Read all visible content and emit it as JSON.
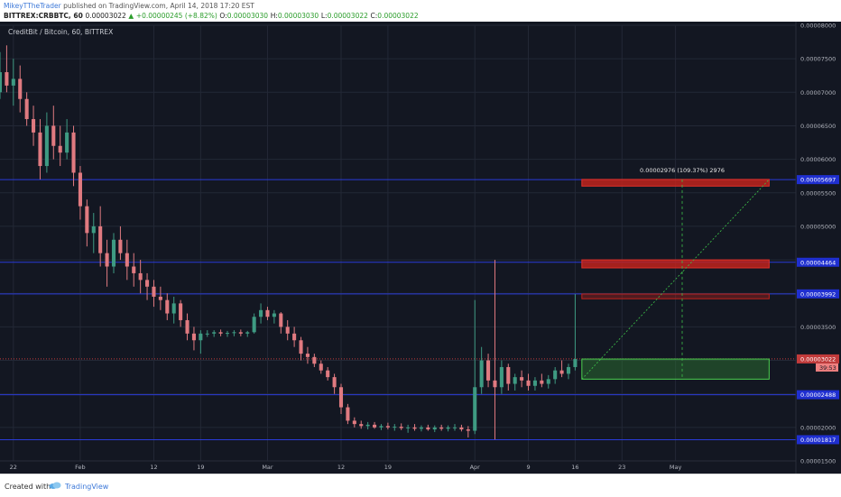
{
  "header": {
    "author": "MikeyTTheTrader",
    "published": "published on TradingView.com, April 14, 2018 17:20 EST",
    "symbol": "BITTREX:CRBBTC, 60",
    "last": "0.00003022",
    "change": "+0.00000245 (+8.82%)",
    "ohlc": {
      "o_label": "O:",
      "o": "0.00003030",
      "h_label": "H:",
      "h": "0.00003030",
      "l_label": "L:",
      "l": "0.00003022",
      "c_label": "C:",
      "c": "0.00003022"
    }
  },
  "chart_title": "CreditBit / Bitcoin, 60, BITTREX",
  "footer": {
    "created_with": "Created with",
    "brand": "TradingView"
  },
  "colors": {
    "background": "#131722",
    "grid": "#232836",
    "up": "#3e9a82",
    "down": "#e07a80",
    "level_line": "#2a3bd8",
    "current_line": "#c23b3b",
    "target_zone": "#c0231c",
    "entry_zone": "#2e7d32",
    "projection": "#3ec44a"
  },
  "chart_data": {
    "type": "candlestick",
    "title": "CreditBit / Bitcoin, 60, BITTREX",
    "y_axis": {
      "ticks": [
        "0.00008000",
        "0.00007500",
        "0.00007000",
        "0.00006500",
        "0.00006000",
        "0.00005500",
        "0.00005000",
        "0.00004500",
        "0.00004000",
        "0.00003500",
        "0.00003000",
        "0.00002500",
        "0.00002000",
        "0.00001500"
      ],
      "range": [
        1.5e-05,
        8e-05
      ]
    },
    "x_axis": {
      "ticks": [
        {
          "label": "22",
          "day": -10
        },
        {
          "label": "Feb",
          "day": 0
        },
        {
          "label": "12",
          "day": 11
        },
        {
          "label": "19",
          "day": 18
        },
        {
          "label": "Mar",
          "day": 28
        },
        {
          "label": "12",
          "day": 39
        },
        {
          "label": "19",
          "day": 46
        },
        {
          "label": "Apr",
          "day": 59
        },
        {
          "label": "9",
          "day": 67
        },
        {
          "label": "16",
          "day": 74
        },
        {
          "label": "23",
          "day": 81
        },
        {
          "label": "May",
          "day": 89
        }
      ],
      "range": [
        -12,
        107
      ]
    },
    "horizontal_levels": [
      {
        "price": 5.697e-05,
        "label": "0.00005697",
        "role": "level"
      },
      {
        "price": 4.464e-05,
        "label": "0.00004464",
        "role": "level"
      },
      {
        "price": 3.992e-05,
        "label": "0.00003992",
        "role": "level"
      },
      {
        "price": 3.022e-05,
        "label": "0.00003022",
        "role": "current"
      },
      {
        "price": 2.488e-05,
        "label": "0.00002488",
        "role": "level"
      },
      {
        "price": 1.817e-05,
        "label": "0.00001817",
        "role": "level"
      }
    ],
    "countdown": "39:53",
    "zones": [
      {
        "name": "target-zone-1",
        "day_start": 75,
        "day_end": 103,
        "price_low": 5.6e-05,
        "price_high": 5.7e-05,
        "kind": "target"
      },
      {
        "name": "target-zone-2",
        "day_start": 75,
        "day_end": 103,
        "price_low": 4.38e-05,
        "price_high": 4.5e-05,
        "kind": "target"
      },
      {
        "name": "target-zone-3",
        "day_start": 75,
        "day_end": 103,
        "price_low": 3.92e-05,
        "price_high": 3.99e-05,
        "kind": "target-faint"
      },
      {
        "name": "entry-zone",
        "day_start": 75,
        "day_end": 103,
        "price_low": 2.72e-05,
        "price_high": 3.02e-05,
        "kind": "entry"
      }
    ],
    "projection": {
      "from": {
        "day": 75,
        "price": 2.72e-05
      },
      "to": {
        "day": 103,
        "price": 5.7e-05
      },
      "vertical_day": 90,
      "label": "0.00002976 (109.37%) 2976"
    },
    "series": [
      {
        "name": "CRBBTC",
        "points": [
          {
            "day": -12,
            "o": 7.0,
            "h": 7.6,
            "l": 6.9,
            "c": 7.3
          },
          {
            "day": -11,
            "o": 7.3,
            "h": 7.7,
            "l": 7.0,
            "c": 7.1
          },
          {
            "day": -10,
            "o": 7.1,
            "h": 7.5,
            "l": 6.8,
            "c": 7.2
          },
          {
            "day": -9,
            "o": 7.2,
            "h": 7.4,
            "l": 6.7,
            "c": 6.9
          },
          {
            "day": -8,
            "o": 6.9,
            "h": 7.0,
            "l": 6.5,
            "c": 6.6
          },
          {
            "day": -7,
            "o": 6.6,
            "h": 6.8,
            "l": 6.2,
            "c": 6.4
          },
          {
            "day": -6,
            "o": 6.4,
            "h": 6.6,
            "l": 5.7,
            "c": 5.9
          },
          {
            "day": -5,
            "o": 5.9,
            "h": 6.7,
            "l": 5.8,
            "c": 6.5
          },
          {
            "day": -4,
            "o": 6.5,
            "h": 6.8,
            "l": 6.0,
            "c": 6.2
          },
          {
            "day": -3,
            "o": 6.2,
            "h": 6.5,
            "l": 5.9,
            "c": 6.1
          },
          {
            "day": -2,
            "o": 6.1,
            "h": 6.6,
            "l": 6.0,
            "c": 6.4
          },
          {
            "day": -1,
            "o": 6.4,
            "h": 6.5,
            "l": 5.6,
            "c": 5.8
          },
          {
            "day": 0,
            "o": 5.8,
            "h": 5.9,
            "l": 5.1,
            "c": 5.3
          },
          {
            "day": 1,
            "o": 5.3,
            "h": 5.4,
            "l": 4.7,
            "c": 4.9
          },
          {
            "day": 2,
            "o": 4.9,
            "h": 5.2,
            "l": 4.6,
            "c": 5.0
          },
          {
            "day": 3,
            "o": 5.0,
            "h": 5.3,
            "l": 4.4,
            "c": 4.6
          },
          {
            "day": 4,
            "o": 4.6,
            "h": 4.8,
            "l": 4.1,
            "c": 4.4
          },
          {
            "day": 5,
            "o": 4.4,
            "h": 4.9,
            "l": 4.3,
            "c": 4.8
          },
          {
            "day": 6,
            "o": 4.8,
            "h": 5.0,
            "l": 4.5,
            "c": 4.6
          },
          {
            "day": 7,
            "o": 4.6,
            "h": 4.8,
            "l": 4.2,
            "c": 4.4
          },
          {
            "day": 8,
            "o": 4.4,
            "h": 4.6,
            "l": 4.1,
            "c": 4.3
          },
          {
            "day": 9,
            "o": 4.3,
            "h": 4.5,
            "l": 4.0,
            "c": 4.2
          },
          {
            "day": 10,
            "o": 4.2,
            "h": 4.3,
            "l": 3.9,
            "c": 4.1
          },
          {
            "day": 11,
            "o": 4.1,
            "h": 4.2,
            "l": 3.8,
            "c": 3.95
          },
          {
            "day": 12,
            "o": 3.95,
            "h": 4.1,
            "l": 3.75,
            "c": 3.9
          },
          {
            "day": 13,
            "o": 3.9,
            "h": 4.0,
            "l": 3.6,
            "c": 3.7
          },
          {
            "day": 14,
            "o": 3.7,
            "h": 3.95,
            "l": 3.55,
            "c": 3.85
          },
          {
            "day": 15,
            "o": 3.85,
            "h": 3.9,
            "l": 3.5,
            "c": 3.6
          },
          {
            "day": 16,
            "o": 3.6,
            "h": 3.7,
            "l": 3.3,
            "c": 3.4
          },
          {
            "day": 17,
            "o": 3.4,
            "h": 3.5,
            "l": 3.15,
            "c": 3.3
          },
          {
            "day": 18,
            "o": 3.3,
            "h": 3.45,
            "l": 3.1,
            "c": 3.4
          },
          {
            "day": 19,
            "o": 3.4,
            "h": 3.45,
            "l": 3.35,
            "c": 3.4
          },
          {
            "day": 20,
            "o": 3.4,
            "h": 3.45,
            "l": 3.35,
            "c": 3.42
          },
          {
            "day": 21,
            "o": 3.42,
            "h": 3.46,
            "l": 3.36,
            "c": 3.4
          },
          {
            "day": 22,
            "o": 3.4,
            "h": 3.44,
            "l": 3.35,
            "c": 3.41
          },
          {
            "day": 23,
            "o": 3.41,
            "h": 3.45,
            "l": 3.36,
            "c": 3.42
          },
          {
            "day": 24,
            "o": 3.42,
            "h": 3.46,
            "l": 3.36,
            "c": 3.4
          },
          {
            "day": 25,
            "o": 3.4,
            "h": 3.44,
            "l": 3.35,
            "c": 3.42
          },
          {
            "day": 26,
            "o": 3.42,
            "h": 3.7,
            "l": 3.4,
            "c": 3.65
          },
          {
            "day": 27,
            "o": 3.65,
            "h": 3.85,
            "l": 3.55,
            "c": 3.75
          },
          {
            "day": 28,
            "o": 3.75,
            "h": 3.8,
            "l": 3.6,
            "c": 3.65
          },
          {
            "day": 29,
            "o": 3.65,
            "h": 3.75,
            "l": 3.55,
            "c": 3.7
          },
          {
            "day": 30,
            "o": 3.7,
            "h": 3.72,
            "l": 3.4,
            "c": 3.5
          },
          {
            "day": 31,
            "o": 3.5,
            "h": 3.6,
            "l": 3.3,
            "c": 3.4
          },
          {
            "day": 32,
            "o": 3.4,
            "h": 3.5,
            "l": 3.2,
            "c": 3.3
          },
          {
            "day": 33,
            "o": 3.3,
            "h": 3.35,
            "l": 3.0,
            "c": 3.1
          },
          {
            "day": 34,
            "o": 3.1,
            "h": 3.2,
            "l": 2.95,
            "c": 3.05
          },
          {
            "day": 35,
            "o": 3.05,
            "h": 3.1,
            "l": 2.9,
            "c": 2.95
          },
          {
            "day": 36,
            "o": 2.95,
            "h": 3.0,
            "l": 2.8,
            "c": 2.85
          },
          {
            "day": 37,
            "o": 2.85,
            "h": 2.9,
            "l": 2.7,
            "c": 2.75
          },
          {
            "day": 38,
            "o": 2.75,
            "h": 2.8,
            "l": 2.5,
            "c": 2.6
          },
          {
            "day": 39,
            "o": 2.6,
            "h": 2.65,
            "l": 2.2,
            "c": 2.3
          },
          {
            "day": 40,
            "o": 2.3,
            "h": 2.35,
            "l": 2.05,
            "c": 2.1
          },
          {
            "day": 41,
            "o": 2.1,
            "h": 2.15,
            "l": 2.0,
            "c": 2.05
          },
          {
            "day": 42,
            "o": 2.05,
            "h": 2.1,
            "l": 1.98,
            "c": 2.02
          },
          {
            "day": 43,
            "o": 2.02,
            "h": 2.08,
            "l": 1.97,
            "c": 2.04
          },
          {
            "day": 44,
            "o": 2.04,
            "h": 2.08,
            "l": 1.98,
            "c": 2.0
          },
          {
            "day": 45,
            "o": 2.0,
            "h": 2.05,
            "l": 1.96,
            "c": 2.02
          },
          {
            "day": 46,
            "o": 2.02,
            "h": 2.07,
            "l": 1.97,
            "c": 2.0
          },
          {
            "day": 47,
            "o": 2.0,
            "h": 2.05,
            "l": 1.95,
            "c": 2.01
          },
          {
            "day": 48,
            "o": 2.01,
            "h": 2.06,
            "l": 1.96,
            "c": 1.99
          },
          {
            "day": 49,
            "o": 1.99,
            "h": 2.04,
            "l": 1.92,
            "c": 2.0
          },
          {
            "day": 50,
            "o": 2.0,
            "h": 2.05,
            "l": 1.95,
            "c": 1.98
          },
          {
            "day": 51,
            "o": 1.98,
            "h": 2.03,
            "l": 1.94,
            "c": 2.0
          },
          {
            "day": 52,
            "o": 2.0,
            "h": 2.04,
            "l": 1.95,
            "c": 1.97
          },
          {
            "day": 53,
            "o": 1.97,
            "h": 2.03,
            "l": 1.93,
            "c": 2.0
          },
          {
            "day": 54,
            "o": 2.0,
            "h": 2.04,
            "l": 1.95,
            "c": 1.98
          },
          {
            "day": 55,
            "o": 1.98,
            "h": 2.03,
            "l": 1.94,
            "c": 2.0
          },
          {
            "day": 56,
            "o": 2.0,
            "h": 2.05,
            "l": 1.95,
            "c": 2.0
          },
          {
            "day": 57,
            "o": 2.0,
            "h": 2.04,
            "l": 1.94,
            "c": 1.97
          },
          {
            "day": 58,
            "o": 1.97,
            "h": 2.02,
            "l": 1.85,
            "c": 1.95
          },
          {
            "day": 59,
            "o": 1.95,
            "h": 3.9,
            "l": 1.9,
            "c": 2.6
          },
          {
            "day": 60,
            "o": 2.6,
            "h": 3.2,
            "l": 2.5,
            "c": 3.0
          },
          {
            "day": 61,
            "o": 3.0,
            "h": 3.1,
            "l": 2.6,
            "c": 2.7
          },
          {
            "day": 62,
            "o": 2.7,
            "h": 4.5,
            "l": 1.82,
            "c": 2.6
          },
          {
            "day": 63,
            "o": 2.6,
            "h": 3.0,
            "l": 2.5,
            "c": 2.9
          },
          {
            "day": 64,
            "o": 2.9,
            "h": 2.95,
            "l": 2.55,
            "c": 2.65
          },
          {
            "day": 65,
            "o": 2.65,
            "h": 2.8,
            "l": 2.55,
            "c": 2.75
          },
          {
            "day": 66,
            "o": 2.75,
            "h": 2.85,
            "l": 2.6,
            "c": 2.7
          },
          {
            "day": 67,
            "o": 2.7,
            "h": 2.8,
            "l": 2.55,
            "c": 2.62
          },
          {
            "day": 68,
            "o": 2.62,
            "h": 2.75,
            "l": 2.55,
            "c": 2.7
          },
          {
            "day": 69,
            "o": 2.7,
            "h": 2.8,
            "l": 2.6,
            "c": 2.65
          },
          {
            "day": 70,
            "o": 2.65,
            "h": 2.78,
            "l": 2.58,
            "c": 2.72
          },
          {
            "day": 71,
            "o": 2.72,
            "h": 2.9,
            "l": 2.65,
            "c": 2.85
          },
          {
            "day": 72,
            "o": 2.85,
            "h": 3.0,
            "l": 2.75,
            "c": 2.8
          },
          {
            "day": 73,
            "o": 2.8,
            "h": 2.95,
            "l": 2.72,
            "c": 2.9
          },
          {
            "day": 74,
            "o": 2.9,
            "h": 3.99,
            "l": 2.85,
            "c": 3.02
          }
        ]
      }
    ],
    "price_unit_note": "series values are in units of 0.00001 BTC"
  }
}
